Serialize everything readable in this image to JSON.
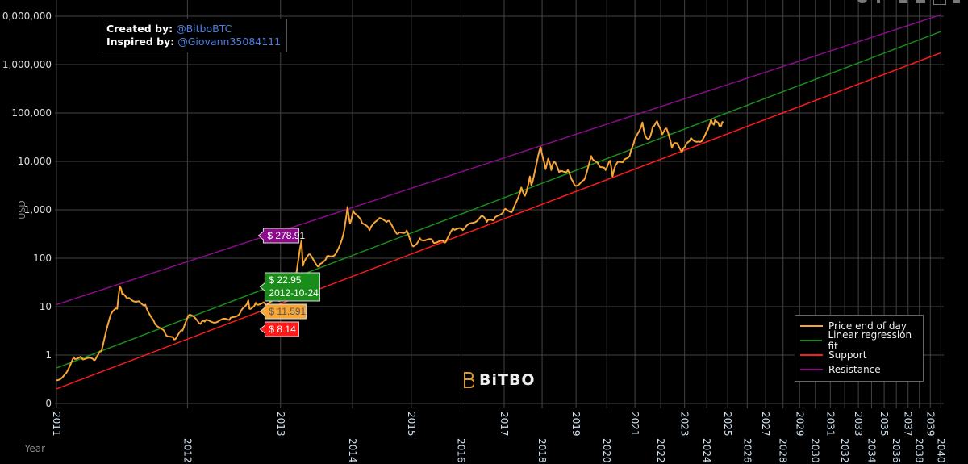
{
  "credits": {
    "created_label": "Created by:",
    "created_handle": "@BitboBTC",
    "inspired_label": "Inspired by:",
    "inspired_handle": "@Giovann35084111"
  },
  "logo": "BiTBO",
  "hover": {
    "resistance": "$ 278.91",
    "fit": "$ 22.95",
    "date": "2012-10-24",
    "price": "$ 11.591",
    "support": "$ 8.14"
  },
  "colors": {
    "price": "#f7a534",
    "fit": "#1a8c1a",
    "support": "#ff1a1a",
    "resistance": "#8b0b8b",
    "grid": "#444444"
  },
  "chart_data": {
    "type": "line",
    "title": "",
    "xlabel": "Year",
    "ylabel": "USD",
    "x_scale": "log(days since 2009-01-03)",
    "y_scale": "log",
    "ylim": [
      0.1,
      10000000
    ],
    "y_ticks": [
      {
        "v": 10000000,
        "l": "10,000,000"
      },
      {
        "v": 1000000,
        "l": "1,000,000"
      },
      {
        "v": 100000,
        "l": "100,000"
      },
      {
        "v": 10000,
        "l": "10,000"
      },
      {
        "v": 1000,
        "l": "1,000"
      },
      {
        "v": 100,
        "l": "100"
      },
      {
        "v": 10,
        "l": "10"
      },
      {
        "v": 1,
        "l": "1"
      },
      {
        "v": 0.1,
        "l": "0"
      }
    ],
    "x_ticks": [
      "2011",
      "2012",
      "2013",
      "2014",
      "2015",
      "2016",
      "2017",
      "2018",
      "2019",
      "2020",
      "2021",
      "2022",
      "2023",
      "2024",
      "2025",
      "2026",
      "2027",
      "2028",
      "2029",
      "2030",
      "2031",
      "2032",
      "2033",
      "2034",
      "2035",
      "2036",
      "2037",
      "2038",
      "2039",
      "2040"
    ],
    "legend": {
      "position": "bottom-right",
      "entries": [
        "Price end of day",
        "Linear regression fit",
        "Support",
        "Resistance"
      ]
    },
    "series": [
      {
        "name": "Price end of day",
        "points": [
          [
            "2010-12-31",
            0.3
          ],
          [
            "2011-01-20",
            0.4
          ],
          [
            "2011-02-10",
            0.9
          ],
          [
            "2011-03-01",
            0.88
          ],
          [
            "2011-04-01",
            0.78
          ],
          [
            "2011-04-20",
            1.2
          ],
          [
            "2011-05-15",
            7
          ],
          [
            "2011-06-01",
            9
          ],
          [
            "2011-06-08",
            26
          ],
          [
            "2011-06-15",
            18
          ],
          [
            "2011-07-01",
            15
          ],
          [
            "2011-08-01",
            13
          ],
          [
            "2011-08-20",
            11
          ],
          [
            "2011-09-15",
            5
          ],
          [
            "2011-10-20",
            2.8
          ],
          [
            "2011-11-18",
            2.1
          ],
          [
            "2011-12-15",
            3.2
          ],
          [
            "2012-01-08",
            6.8
          ],
          [
            "2012-02-15",
            4.4
          ],
          [
            "2012-03-01",
            4.9
          ],
          [
            "2012-06-01",
            5.3
          ],
          [
            "2012-07-15",
            7.8
          ],
          [
            "2012-08-15",
            13.5
          ],
          [
            "2012-08-20",
            9
          ],
          [
            "2012-09-15",
            12
          ],
          [
            "2012-10-24",
            11.59
          ],
          [
            "2012-12-31",
            13.5
          ],
          [
            "2013-02-01",
            20
          ],
          [
            "2013-03-15",
            47
          ],
          [
            "2013-04-09",
            230
          ],
          [
            "2013-04-16",
            70
          ],
          [
            "2013-05-15",
            120
          ],
          [
            "2013-07-05",
            68
          ],
          [
            "2013-08-15",
            110
          ],
          [
            "2013-10-01",
            125
          ],
          [
            "2013-11-10",
            300
          ],
          [
            "2013-12-04",
            1150
          ],
          [
            "2013-12-18",
            520
          ],
          [
            "2014-01-05",
            950
          ],
          [
            "2014-02-25",
            530
          ],
          [
            "2014-04-10",
            380
          ],
          [
            "2014-06-01",
            630
          ],
          [
            "2014-08-01",
            590
          ],
          [
            "2014-10-05",
            320
          ],
          [
            "2014-12-01",
            375
          ],
          [
            "2015-01-14",
            175
          ],
          [
            "2015-03-01",
            260
          ],
          [
            "2015-06-01",
            225
          ],
          [
            "2015-08-25",
            210
          ],
          [
            "2015-11-04",
            400
          ],
          [
            "2016-01-15",
            380
          ],
          [
            "2016-06-17",
            750
          ],
          [
            "2016-08-01",
            560
          ],
          [
            "2016-10-01",
            610
          ],
          [
            "2017-01-01",
            1000
          ],
          [
            "2017-03-20",
            950
          ],
          [
            "2017-06-10",
            2900
          ],
          [
            "2017-07-15",
            1950
          ],
          [
            "2017-09-01",
            4900
          ],
          [
            "2017-09-15",
            3200
          ],
          [
            "2017-12-17",
            19500
          ],
          [
            "2018-02-06",
            6900
          ],
          [
            "2018-03-05",
            11400
          ],
          [
            "2018-04-06",
            6600
          ],
          [
            "2018-05-05",
            9800
          ],
          [
            "2018-06-29",
            5900
          ],
          [
            "2018-10-01",
            6600
          ],
          [
            "2018-11-25",
            3900
          ],
          [
            "2018-12-15",
            3200
          ],
          [
            "2019-04-01",
            4100
          ],
          [
            "2019-06-26",
            12900
          ],
          [
            "2019-09-25",
            8400
          ],
          [
            "2019-12-17",
            6600
          ],
          [
            "2020-02-12",
            10300
          ],
          [
            "2020-03-13",
            4900
          ],
          [
            "2020-05-01",
            8800
          ],
          [
            "2020-07-25",
            9600
          ],
          [
            "2020-10-21",
            13000
          ],
          [
            "2020-12-31",
            29000
          ],
          [
            "2021-04-14",
            63500
          ],
          [
            "2021-05-23",
            34000
          ],
          [
            "2021-07-20",
            29800
          ],
          [
            "2021-09-07",
            52000
          ],
          [
            "2021-11-09",
            67500
          ],
          [
            "2022-01-24",
            36000
          ],
          [
            "2022-03-29",
            47500
          ],
          [
            "2022-06-18",
            19000
          ],
          [
            "2022-08-15",
            24000
          ],
          [
            "2022-11-21",
            15800
          ],
          [
            "2023-01-31",
            23000
          ],
          [
            "2023-04-14",
            30400
          ],
          [
            "2023-09-11",
            25200
          ],
          [
            "2023-12-31",
            42500
          ],
          [
            "2024-03-14",
            73000
          ],
          [
            "2024-05-01",
            57000
          ],
          [
            "2024-05-21",
            71000
          ],
          [
            "2024-08-05",
            54000
          ],
          [
            "2024-09-06",
            54000
          ],
          [
            "2024-10-14",
            66000
          ]
        ]
      },
      {
        "name": "Linear regression fit",
        "points": [
          [
            "2011-01-01",
            0.54
          ],
          [
            "2040-01-01",
            4800000
          ]
        ]
      },
      {
        "name": "Support",
        "points": [
          [
            "2011-01-01",
            0.2
          ],
          [
            "2040-01-01",
            1750000
          ]
        ]
      },
      {
        "name": "Resistance",
        "points": [
          [
            "2011-01-01",
            11
          ],
          [
            "2040-01-01",
            10700000
          ]
        ]
      }
    ]
  }
}
